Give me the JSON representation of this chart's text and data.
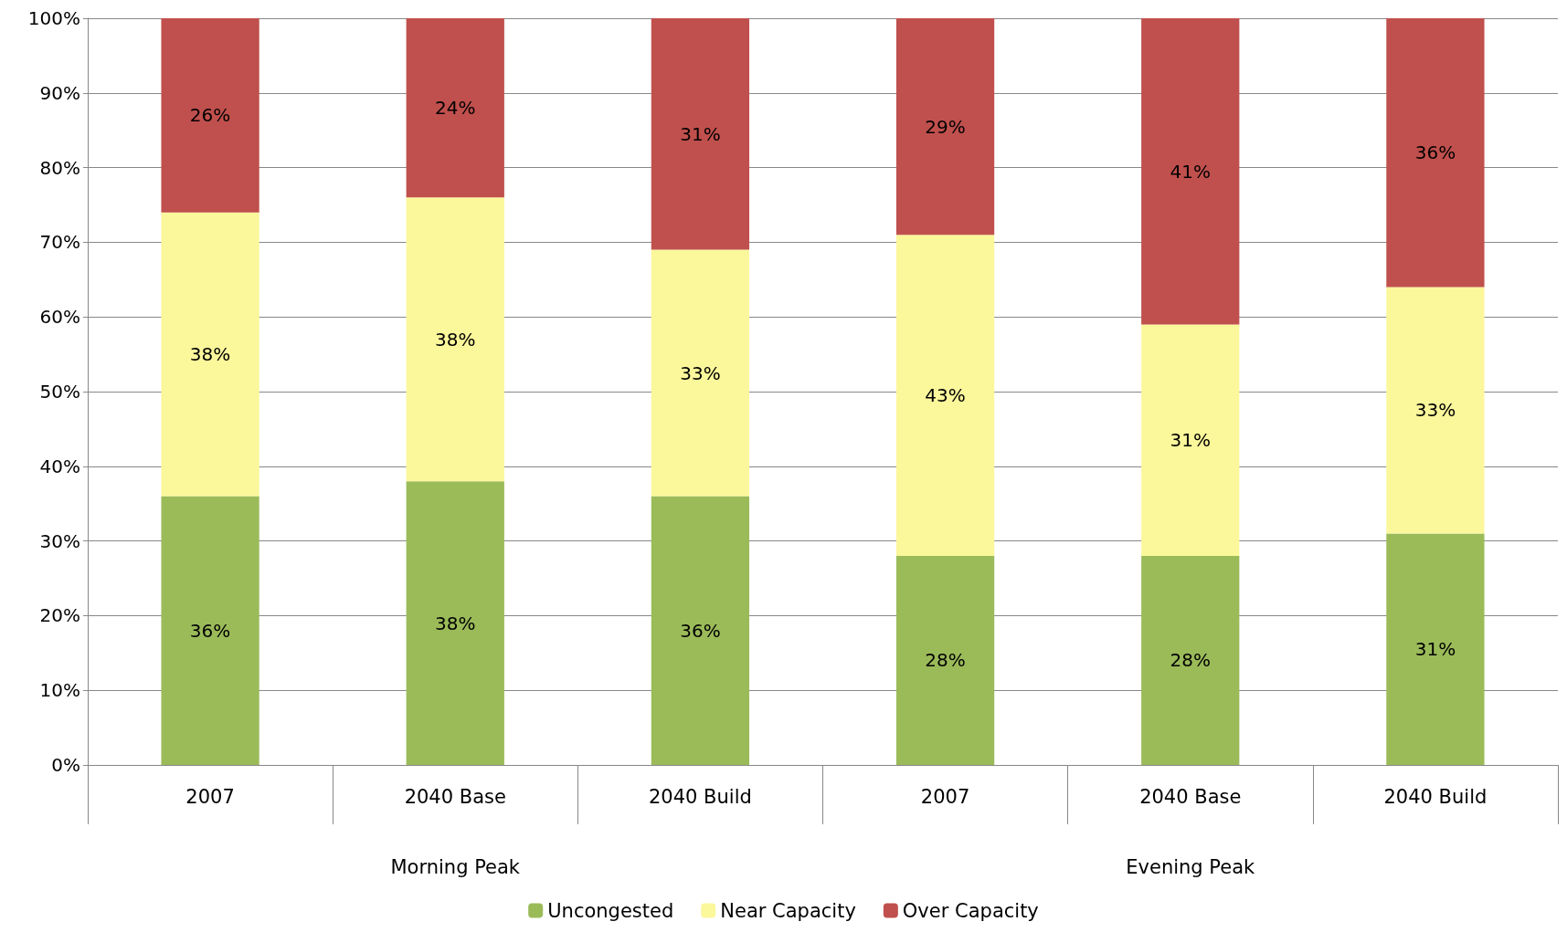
{
  "chart_data": {
    "type": "bar",
    "stacked": true,
    "categories": [
      "2007",
      "2040 Base",
      "2040 Build",
      "2007",
      "2040 Base",
      "2040 Build"
    ],
    "series": [
      {
        "name": "Uncongested",
        "color": "#9bbb59",
        "values": [
          36,
          38,
          36,
          28,
          28,
          31
        ],
        "value_labels": [
          "36%",
          "38%",
          "36%",
          "28%",
          "28%",
          "31%"
        ]
      },
      {
        "name": "Near Capacity",
        "color": "#fbf79b",
        "values": [
          38,
          38,
          33,
          43,
          31,
          33
        ],
        "value_labels": [
          "38%",
          "38%",
          "33%",
          "43%",
          "31%",
          "33%"
        ]
      },
      {
        "name": "Over Capacity",
        "color": "#c0504d",
        "values": [
          26,
          24,
          31,
          29,
          41,
          36
        ],
        "value_labels": [
          "26%",
          "24%",
          "31%",
          "29%",
          "41%",
          "36%"
        ]
      }
    ],
    "ylim": [
      0,
      100
    ],
    "yticks": [
      {
        "value": 0,
        "label": "0%"
      },
      {
        "value": 10,
        "label": "10%"
      },
      {
        "value": 20,
        "label": "20%"
      },
      {
        "value": 30,
        "label": "30%"
      },
      {
        "value": 40,
        "label": "40%"
      },
      {
        "value": 50,
        "label": "50%"
      },
      {
        "value": 60,
        "label": "60%"
      },
      {
        "value": 70,
        "label": "70%"
      },
      {
        "value": 80,
        "label": "80%"
      },
      {
        "value": 90,
        "label": "90%"
      },
      {
        "value": 100,
        "label": "100%"
      }
    ],
    "annotations": [
      "Morning Peak",
      "Evening Peak"
    ],
    "grid": "y",
    "legend": "bottom"
  }
}
